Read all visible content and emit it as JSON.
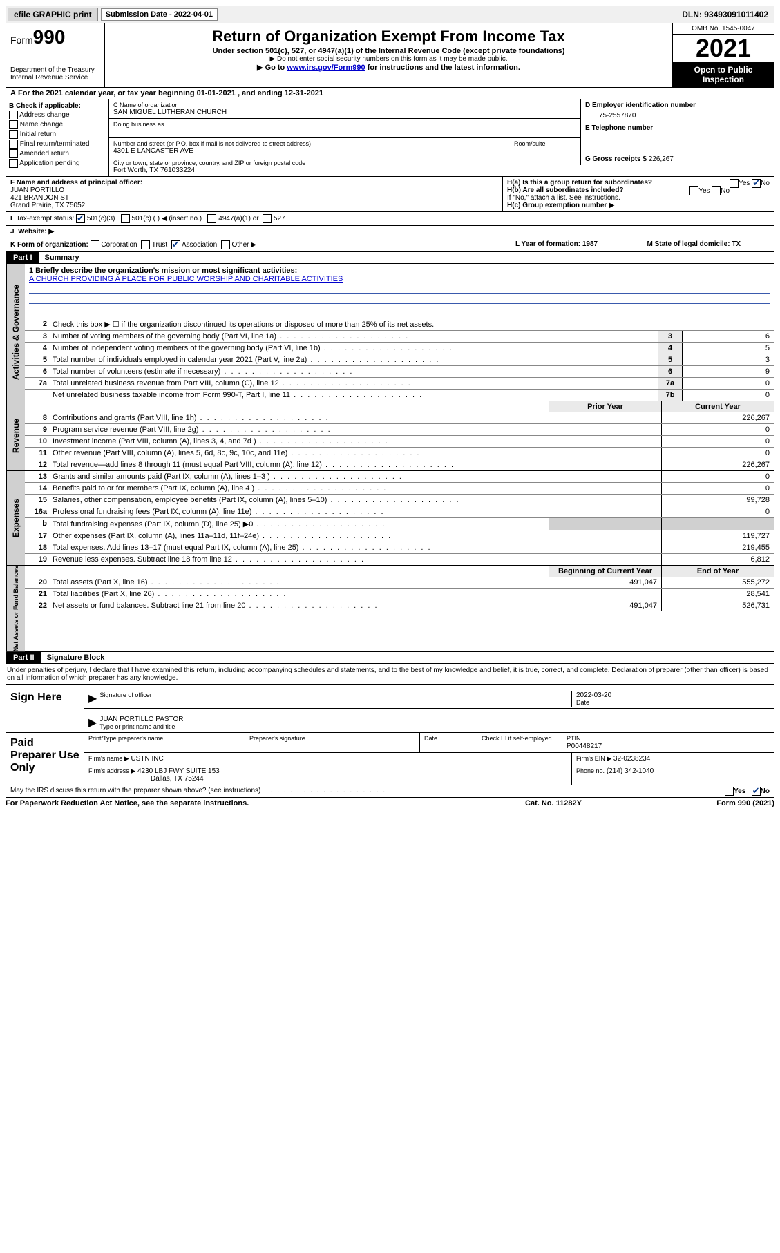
{
  "top": {
    "efile": "efile GRAPHIC print",
    "sub_label": "Submission Date - 2022-04-01",
    "dln": "DLN: 93493091011402"
  },
  "header": {
    "form_word": "Form",
    "form_num": "990",
    "dept": "Department of the Treasury",
    "irs": "Internal Revenue Service",
    "title": "Return of Organization Exempt From Income Tax",
    "sub": "Under section 501(c), 527, or 4947(a)(1) of the Internal Revenue Code (except private foundations)",
    "note1": "▶ Do not enter social security numbers on this form as it may be made public.",
    "note2_pre": "▶ Go to ",
    "note2_link": "www.irs.gov/Form990",
    "note2_post": " for instructions and the latest information.",
    "omb": "OMB No. 1545-0047",
    "year": "2021",
    "open": "Open to Public Inspection"
  },
  "line_a": "For the 2021 calendar year, or tax year beginning 01-01-2021   , and ending 12-31-2021",
  "col_b": {
    "hdr": "B Check if applicable:",
    "opts": [
      "Address change",
      "Name change",
      "Initial return",
      "Final return/terminated",
      "Amended return",
      "Application pending"
    ]
  },
  "col_c": {
    "name_lbl": "C Name of organization",
    "name": "SAN MIGUEL LUTHERAN CHURCH",
    "dba_lbl": "Doing business as",
    "addr_lbl": "Number and street (or P.O. box if mail is not delivered to street address)",
    "room_lbl": "Room/suite",
    "addr": "4301 E LANCASTER AVE",
    "city_lbl": "City or town, state or province, country, and ZIP or foreign postal code",
    "city": "Fort Worth, TX  761033224"
  },
  "col_d": {
    "d_lbl": "D Employer identification number",
    "ein": "75-2557870",
    "e_lbl": "E Telephone number",
    "g_lbl": "G Gross receipts $",
    "g_val": "226,267"
  },
  "row_f": {
    "f_lbl": "F Name and address of principal officer:",
    "name": "JUAN PORTILLO",
    "addr1": "421 BRANDON ST",
    "addr2": "Grand Prairie, TX  75052",
    "ha": "H(a)  Is this a group return for subordinates?",
    "hb": "H(b)  Are all subordinates included?",
    "hb_note": "If \"No,\" attach a list. See instructions.",
    "hc": "H(c)  Group exemption number ▶",
    "yes": "Yes",
    "no": "No"
  },
  "row_i": {
    "lbl": "Tax-exempt status:",
    "o1": "501(c)(3)",
    "o2": "501(c) (   ) ◀ (insert no.)",
    "o3": "4947(a)(1) or",
    "o4": "527"
  },
  "row_j": "Website: ▶",
  "row_k": {
    "lbl": "K Form of organization:",
    "o1": "Corporation",
    "o2": "Trust",
    "o3": "Association",
    "o4": "Other ▶",
    "l": "L Year of formation: 1987",
    "m": "M State of legal domicile: TX"
  },
  "part1": {
    "num": "Part I",
    "title": "Summary"
  },
  "mission": {
    "q": "1  Briefly describe the organization's mission or most significant activities:",
    "a": "A CHURCH PROVIDING A PLACE FOR PUBLIC WORSHIP AND CHARITABLE ACTIVITIES"
  },
  "gov": {
    "label": "Activities & Governance",
    "rows": [
      {
        "n": "2",
        "t": "Check this box ▶ ☐  if the organization discontinued its operations or disposed of more than 25% of its net assets."
      },
      {
        "n": "3",
        "t": "Number of voting members of the governing body (Part VI, line 1a)",
        "rn": "3",
        "v": "6"
      },
      {
        "n": "4",
        "t": "Number of independent voting members of the governing body (Part VI, line 1b)",
        "rn": "4",
        "v": "5"
      },
      {
        "n": "5",
        "t": "Total number of individuals employed in calendar year 2021 (Part V, line 2a)",
        "rn": "5",
        "v": "3"
      },
      {
        "n": "6",
        "t": "Total number of volunteers (estimate if necessary)",
        "rn": "6",
        "v": "9"
      },
      {
        "n": "7a",
        "t": "Total unrelated business revenue from Part VIII, column (C), line 12",
        "rn": "7a",
        "v": "0"
      },
      {
        "n": "",
        "t": "Net unrelated business taxable income from Form 990-T, Part I, line 11",
        "rn": "7b",
        "v": "0"
      }
    ]
  },
  "rev": {
    "label": "Revenue",
    "hdr_prior": "Prior Year",
    "hdr_curr": "Current Year",
    "rows": [
      {
        "n": "8",
        "t": "Contributions and grants (Part VIII, line 1h)",
        "p": "",
        "c": "226,267"
      },
      {
        "n": "9",
        "t": "Program service revenue (Part VIII, line 2g)",
        "p": "",
        "c": "0"
      },
      {
        "n": "10",
        "t": "Investment income (Part VIII, column (A), lines 3, 4, and 7d )",
        "p": "",
        "c": "0"
      },
      {
        "n": "11",
        "t": "Other revenue (Part VIII, column (A), lines 5, 6d, 8c, 9c, 10c, and 11e)",
        "p": "",
        "c": "0"
      },
      {
        "n": "12",
        "t": "Total revenue—add lines 8 through 11 (must equal Part VIII, column (A), line 12)",
        "p": "",
        "c": "226,267"
      }
    ]
  },
  "exp": {
    "label": "Expenses",
    "rows": [
      {
        "n": "13",
        "t": "Grants and similar amounts paid (Part IX, column (A), lines 1–3 )",
        "p": "",
        "c": "0"
      },
      {
        "n": "14",
        "t": "Benefits paid to or for members (Part IX, column (A), line 4 )",
        "p": "",
        "c": "0"
      },
      {
        "n": "15",
        "t": "Salaries, other compensation, employee benefits (Part IX, column (A), lines 5–10)",
        "p": "",
        "c": "99,728"
      },
      {
        "n": "16a",
        "t": "Professional fundraising fees (Part IX, column (A), line 11e)",
        "p": "",
        "c": "0"
      },
      {
        "n": "b",
        "t": "Total fundraising expenses (Part IX, column (D), line 25) ▶0",
        "p": "grey",
        "c": "grey"
      },
      {
        "n": "17",
        "t": "Other expenses (Part IX, column (A), lines 11a–11d, 11f–24e)",
        "p": "",
        "c": "119,727"
      },
      {
        "n": "18",
        "t": "Total expenses. Add lines 13–17 (must equal Part IX, column (A), line 25)",
        "p": "",
        "c": "219,455"
      },
      {
        "n": "19",
        "t": "Revenue less expenses. Subtract line 18 from line 12",
        "p": "",
        "c": "6,812"
      }
    ]
  },
  "net": {
    "label": "Net Assets or Fund Balances",
    "hdr_beg": "Beginning of Current Year",
    "hdr_end": "End of Year",
    "rows": [
      {
        "n": "20",
        "t": "Total assets (Part X, line 16)",
        "p": "491,047",
        "c": "555,272"
      },
      {
        "n": "21",
        "t": "Total liabilities (Part X, line 26)",
        "p": "",
        "c": "28,541"
      },
      {
        "n": "22",
        "t": "Net assets or fund balances. Subtract line 21 from line 20",
        "p": "491,047",
        "c": "526,731"
      }
    ]
  },
  "part2": {
    "num": "Part II",
    "title": "Signature Block"
  },
  "sig_note": "Under penalties of perjury, I declare that I have examined this return, including accompanying schedules and statements, and to the best of my knowledge and belief, it is true, correct, and complete. Declaration of preparer (other than officer) is based on all information of which preparer has any knowledge.",
  "sign": {
    "left": "Sign Here",
    "sig_lbl": "Signature of officer",
    "date_lbl": "Date",
    "date": "2022-03-20",
    "name": "JUAN PORTILLO PASTOR",
    "name_lbl": "Type or print name and title"
  },
  "prep": {
    "left": "Paid Preparer Use Only",
    "h1": "Print/Type preparer's name",
    "h2": "Preparer's signature",
    "h3": "Date",
    "h4_a": "Check ☐ if self-employed",
    "h4_b": "PTIN",
    "ptin": "P00448217",
    "firm_lbl": "Firm's name   ▶",
    "firm": "USTN INC",
    "ein_lbl": "Firm's EIN ▶",
    "ein": "32-0238234",
    "addr_lbl": "Firm's address ▶",
    "addr1": "4230 LBJ FWY SUITE 153",
    "addr2": "Dallas, TX  75244",
    "phone_lbl": "Phone no.",
    "phone": "(214) 342-1040"
  },
  "discuss": {
    "q": "May the IRS discuss this return with the preparer shown above? (see instructions)",
    "yes": "Yes",
    "no": "No"
  },
  "footer": {
    "l": "For Paperwork Reduction Act Notice, see the separate instructions.",
    "m": "Cat. No. 11282Y",
    "r": "Form 990 (2021)"
  },
  "colors": {
    "link": "#0000cc",
    "check": "#0a3a8a",
    "uline": "#3a5aad",
    "grey": "#d0d0d0"
  }
}
